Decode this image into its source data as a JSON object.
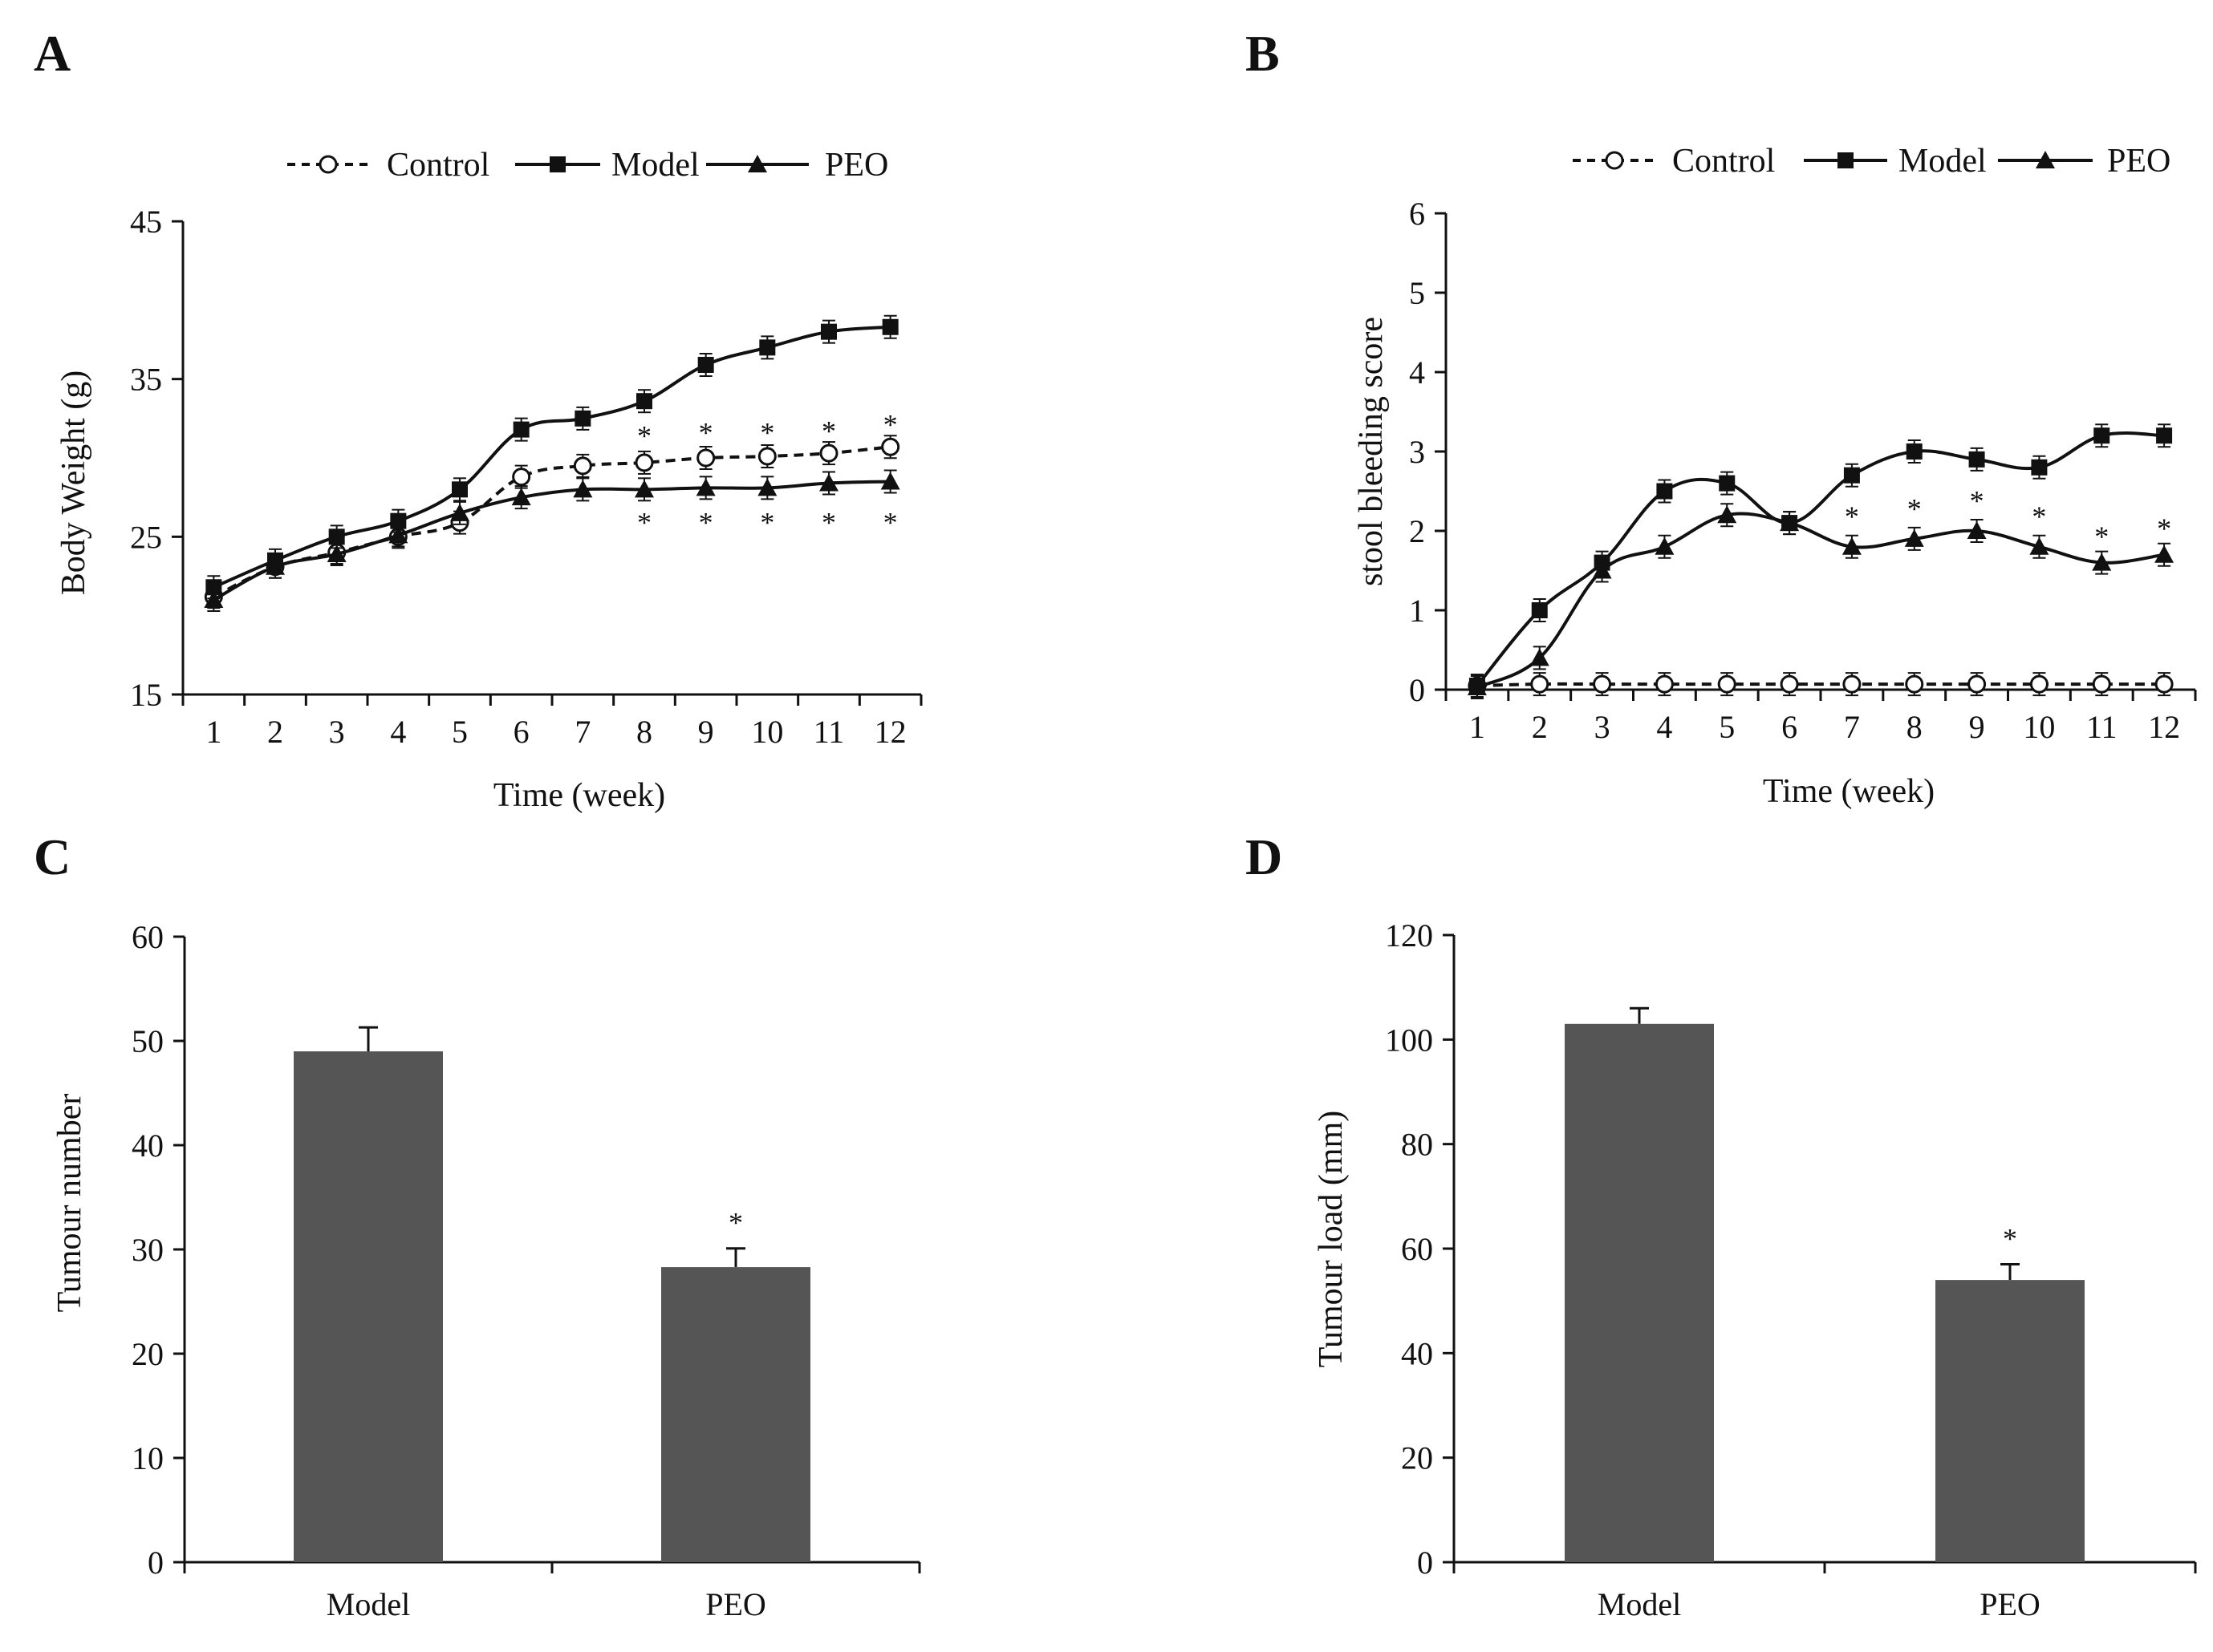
{
  "chart_data": [
    {
      "panel": "A",
      "type": "line",
      "xlabel": "Time (week)",
      "ylabel": "Body Weight (g)",
      "ylim": [
        15,
        45
      ],
      "yticks": [
        "15",
        "25",
        "35",
        "45"
      ],
      "categories": [
        "1",
        "2",
        "3",
        "4",
        "5",
        "6",
        "7",
        "8",
        "9",
        "10",
        "11",
        "12"
      ],
      "legend": {
        "position": "top-right",
        "entries": [
          "Control",
          "Model",
          "PEO"
        ]
      },
      "series": [
        {
          "name": "Control",
          "marker": "open-circle",
          "line": "dashed",
          "values": [
            21.2,
            23.1,
            24.0,
            25.0,
            25.9,
            28.8,
            29.5,
            29.7,
            30.0,
            30.1,
            30.3,
            30.7
          ]
        },
        {
          "name": "Model",
          "marker": "filled-square",
          "line": "solid",
          "values": [
            21.8,
            23.5,
            25.0,
            26.0,
            28.0,
            31.8,
            32.5,
            33.6,
            35.9,
            37.0,
            38.0,
            38.3
          ]
        },
        {
          "name": "PEO",
          "marker": "filled-triangle",
          "line": "solid",
          "values": [
            21.0,
            23.1,
            23.9,
            25.1,
            26.5,
            27.5,
            28.0,
            28.0,
            28.1,
            28.1,
            28.4,
            28.5
          ]
        }
      ],
      "annotations": [
        {
          "text": "*",
          "category": "8",
          "y": 31.5
        },
        {
          "text": "*",
          "category": "9",
          "y": 31.7
        },
        {
          "text": "*",
          "category": "10",
          "y": 31.7
        },
        {
          "text": "*",
          "category": "11",
          "y": 31.8
        },
        {
          "text": "*",
          "category": "12",
          "y": 32.2
        },
        {
          "text": "*",
          "category": "8",
          "y": 26.0
        },
        {
          "text": "*",
          "category": "9",
          "y": 26.0
        },
        {
          "text": "*",
          "category": "10",
          "y": 26.0
        },
        {
          "text": "*",
          "category": "11",
          "y": 26.0
        },
        {
          "text": "*",
          "category": "12",
          "y": 26.0
        }
      ]
    },
    {
      "panel": "B",
      "type": "line",
      "xlabel": "Time (week)",
      "ylabel": "stool bleeding score",
      "ylim": [
        0,
        6
      ],
      "yticks": [
        "0",
        "1",
        "2",
        "3",
        "4",
        "5",
        "6"
      ],
      "categories": [
        "1",
        "2",
        "3",
        "4",
        "5",
        "6",
        "7",
        "8",
        "9",
        "10",
        "11",
        "12"
      ],
      "legend": {
        "position": "top-right",
        "entries": [
          "Control",
          "Model",
          "PEO"
        ]
      },
      "series": [
        {
          "name": "Control",
          "marker": "open-circle",
          "line": "dashed",
          "values": [
            0.05,
            0.07,
            0.07,
            0.07,
            0.07,
            0.07,
            0.07,
            0.07,
            0.07,
            0.07,
            0.07,
            0.07
          ]
        },
        {
          "name": "Model",
          "marker": "filled-square",
          "line": "solid",
          "values": [
            0.05,
            1.0,
            1.6,
            2.5,
            2.6,
            2.1,
            2.7,
            3.0,
            2.9,
            2.8,
            3.2,
            3.2
          ]
        },
        {
          "name": "PEO",
          "marker": "filled-triangle",
          "line": "solid",
          "values": [
            0.03,
            0.4,
            1.5,
            1.8,
            2.2,
            2.1,
            1.8,
            1.9,
            2.0,
            1.8,
            1.6,
            1.7
          ]
        }
      ],
      "annotations": [
        {
          "text": "*",
          "category": "7",
          "y": 2.2
        },
        {
          "text": "*",
          "category": "8",
          "y": 2.3
        },
        {
          "text": "*",
          "category": "9",
          "y": 2.4
        },
        {
          "text": "*",
          "category": "10",
          "y": 2.2
        },
        {
          "text": "*",
          "category": "11",
          "y": 1.95
        },
        {
          "text": "*",
          "category": "12",
          "y": 2.05
        }
      ]
    },
    {
      "panel": "C",
      "type": "bar",
      "xlabel": "",
      "ylabel": "Tumour  number",
      "ylim": [
        0,
        60
      ],
      "yticks": [
        "0",
        "10",
        "20",
        "30",
        "40",
        "50",
        "60"
      ],
      "categories": [
        "Model",
        "PEO"
      ],
      "values": [
        49,
        28.3
      ],
      "errors": [
        2.3,
        1.8
      ],
      "bar_color": "#555555",
      "annotations": [
        {
          "text": "*",
          "category": "PEO"
        }
      ]
    },
    {
      "panel": "D",
      "type": "bar",
      "xlabel": "",
      "ylabel": "Tumour load (mm)",
      "ylim": [
        0,
        120
      ],
      "yticks": [
        "0",
        "20",
        "40",
        "60",
        "80",
        "100",
        "120"
      ],
      "categories": [
        "Model",
        "PEO"
      ],
      "values": [
        103,
        54
      ],
      "errors": [
        3,
        3
      ],
      "bar_color": "#555555",
      "annotations": [
        {
          "text": "*",
          "category": "PEO"
        }
      ]
    }
  ]
}
